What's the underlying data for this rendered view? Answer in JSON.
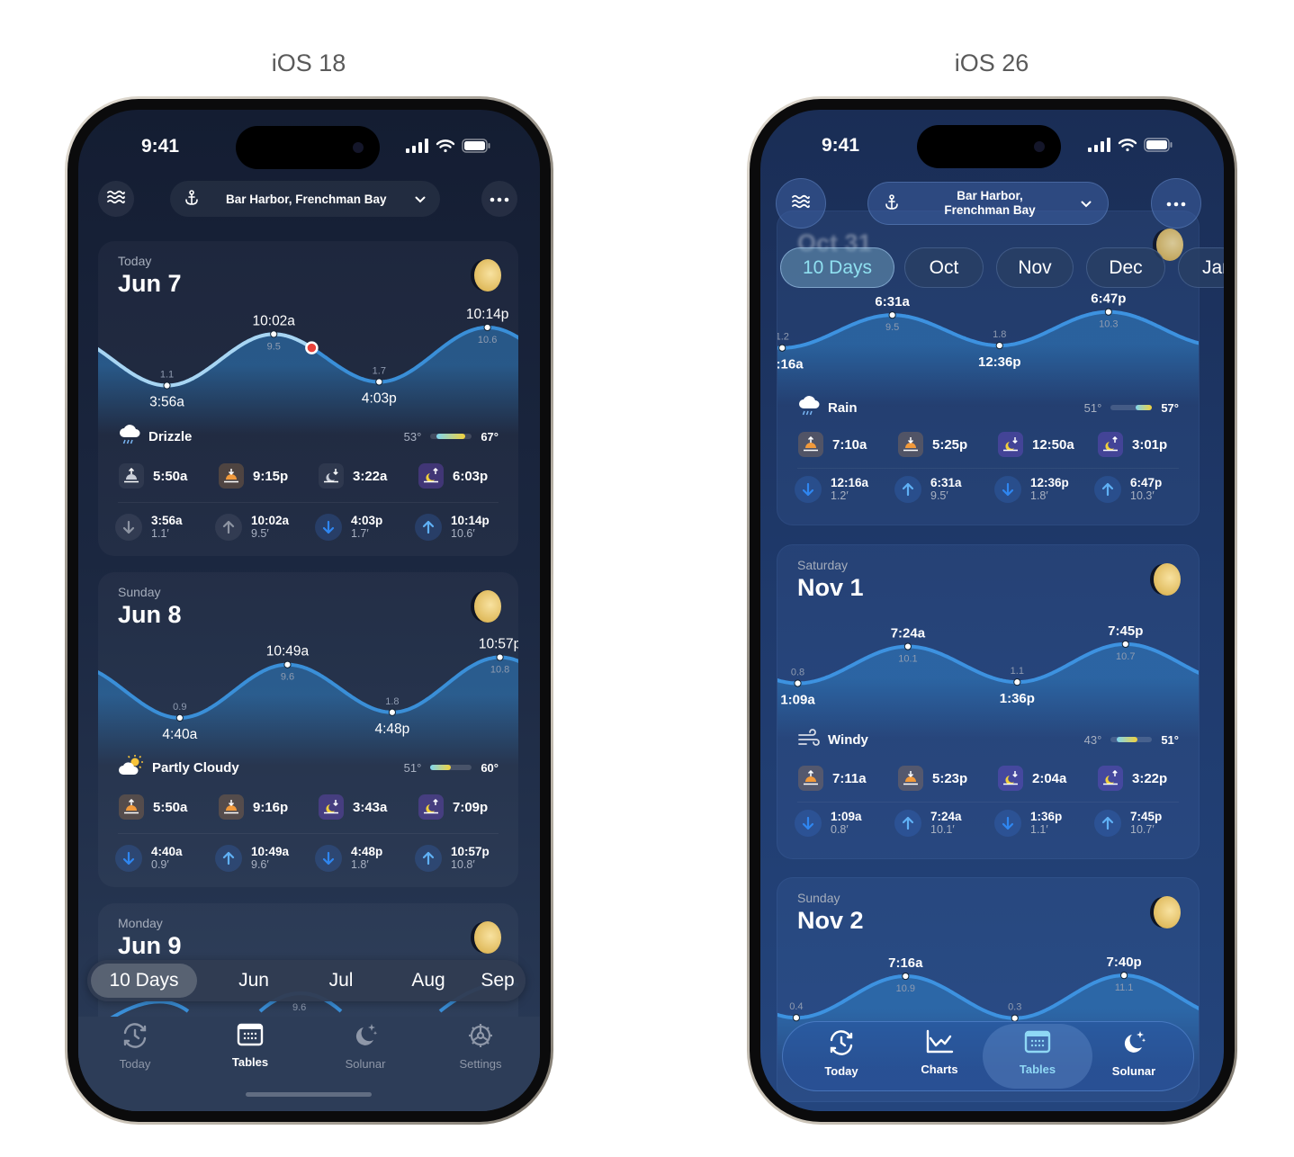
{
  "titles": [
    "iOS 18",
    "iOS 26"
  ],
  "units": {
    "feet": "′"
  },
  "phones": [
    {
      "status_time": "9:41",
      "location": "Bar Harbor, Frenchman Bay",
      "location_lines": [
        "Bar Harbor, Frenchman Bay"
      ],
      "days": [
        {
          "label": "Today",
          "date": "Jun 7",
          "tides": [
            {
              "time": "3:56a",
              "height": "1.1",
              "type": "low",
              "past": true
            },
            {
              "time": "10:02a",
              "height": "9.5",
              "type": "high",
              "past": true
            },
            {
              "time": "4:03p",
              "height": "1.7",
              "type": "low"
            },
            {
              "time": "10:14p",
              "height": "10.6",
              "type": "high"
            }
          ],
          "weather": {
            "condition": "Drizzle",
            "icon": "cloud-drizzle-icon",
            "low": "53°",
            "high": "67°",
            "range_fill": [
              0.15,
              0.85
            ]
          },
          "sun_moon": [
            {
              "kind": "sunrise",
              "time": "5:50a",
              "past": true
            },
            {
              "kind": "sunset",
              "time": "9:15p"
            },
            {
              "kind": "moonset",
              "time": "3:22a",
              "past": true
            },
            {
              "kind": "moonrise",
              "time": "6:03p"
            }
          ],
          "now_marker": "current-time-dot"
        },
        {
          "label": "Sunday",
          "date": "Jun 8",
          "tides": [
            {
              "time": "4:40a",
              "height": "0.9",
              "type": "low"
            },
            {
              "time": "10:49a",
              "height": "9.6",
              "type": "high"
            },
            {
              "time": "4:48p",
              "height": "1.8",
              "type": "low"
            },
            {
              "time": "10:57p",
              "height": "10.8",
              "type": "high"
            }
          ],
          "weather": {
            "condition": "Partly Cloudy",
            "icon": "sun-cloud-icon",
            "low": "51°",
            "high": "60°",
            "range_fill": [
              0.0,
              0.5
            ]
          },
          "sun_moon": [
            {
              "kind": "sunrise",
              "time": "5:50a"
            },
            {
              "kind": "sunset",
              "time": "9:16p"
            },
            {
              "kind": "moonset",
              "time": "3:43a"
            },
            {
              "kind": "moonrise",
              "time": "7:09p"
            }
          ]
        },
        {
          "label": "Monday",
          "date": "Jun 9",
          "tides": [],
          "extra_heights": [
            "9.6"
          ]
        }
      ],
      "range_tabs": [
        {
          "label": "10 Days",
          "selected": true
        },
        {
          "label": "Jun"
        },
        {
          "label": "Jul"
        },
        {
          "label": "Aug"
        },
        {
          "label": "Sep"
        }
      ],
      "tabs": [
        {
          "label": "Today",
          "icon": "clock-arrows-icon"
        },
        {
          "label": "Tables",
          "icon": "table-icon",
          "selected": true
        },
        {
          "label": "Solunar",
          "icon": "moon-stars-icon"
        },
        {
          "label": "Settings",
          "icon": "gear-icon"
        }
      ]
    },
    {
      "status_time": "9:41",
      "location": "Bar Harbor, Frenchman Bay",
      "location_lines": [
        "Bar Harbor,",
        "Frenchman Bay"
      ],
      "days": [
        {
          "label": "",
          "date": "Oct 31",
          "tides": [
            {
              "time": "12:16a",
              "height": "1.2",
              "type": "low"
            },
            {
              "time": "6:31a",
              "height": "9.5",
              "type": "high"
            },
            {
              "time": "12:36p",
              "height": "1.8",
              "type": "low"
            },
            {
              "time": "6:47p",
              "height": "10.3",
              "type": "high"
            }
          ],
          "weather": {
            "condition": "Rain",
            "icon": "cloud-rain-icon",
            "low": "51°",
            "high": "57°",
            "range_fill": [
              0.6,
              1.0
            ]
          },
          "sun_moon": [
            {
              "kind": "sunrise",
              "time": "7:10a"
            },
            {
              "kind": "sunset",
              "time": "5:25p"
            },
            {
              "kind": "moonset",
              "time": "12:50a"
            },
            {
              "kind": "moonrise",
              "time": "3:01p"
            }
          ]
        },
        {
          "label": "Saturday",
          "date": "Nov 1",
          "tides": [
            {
              "time": "1:09a",
              "height": "0.8",
              "type": "low"
            },
            {
              "time": "7:24a",
              "height": "10.1",
              "type": "high"
            },
            {
              "time": "1:36p",
              "height": "1.1",
              "type": "low"
            },
            {
              "time": "7:45p",
              "height": "10.7",
              "type": "high"
            }
          ],
          "weather": {
            "condition": "Windy",
            "icon": "wind-icon",
            "low": "43°",
            "high": "51°",
            "range_fill": [
              0.15,
              0.65
            ]
          },
          "sun_moon": [
            {
              "kind": "sunrise",
              "time": "7:11a"
            },
            {
              "kind": "sunset",
              "time": "5:23p"
            },
            {
              "kind": "moonset",
              "time": "2:04a"
            },
            {
              "kind": "moonrise",
              "time": "3:22p"
            }
          ]
        },
        {
          "label": "Sunday",
          "date": "Nov 2",
          "tides": [
            {
              "time": "",
              "height": "0.4",
              "type": "low"
            },
            {
              "time": "7:16a",
              "height": "10.9",
              "type": "high"
            },
            {
              "time": "",
              "height": "0.3",
              "type": "low"
            },
            {
              "time": "7:40p",
              "height": "11.1",
              "type": "high"
            }
          ]
        }
      ],
      "range_tabs": [
        {
          "label": "10 Days",
          "selected": true
        },
        {
          "label": "Oct"
        },
        {
          "label": "Nov"
        },
        {
          "label": "Dec"
        },
        {
          "label": "Jan"
        }
      ],
      "tabs": [
        {
          "label": "Today",
          "icon": "clock-arrows-icon"
        },
        {
          "label": "Charts",
          "icon": "line-chart-icon"
        },
        {
          "label": "Tables",
          "icon": "table-icon",
          "selected": true
        },
        {
          "label": "Solunar",
          "icon": "moon-stars-icon"
        }
      ]
    }
  ],
  "colors": {
    "accent": "#3a8fd8",
    "tide_now": "#e8413a",
    "selected_tab_26": "#8fd8f5",
    "sun_icon": "#f29a3c",
    "moon_icon": "#f2cf3c"
  }
}
